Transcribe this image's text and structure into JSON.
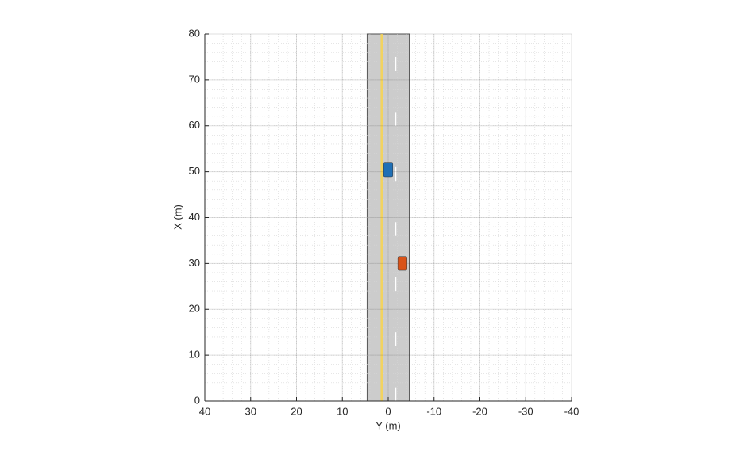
{
  "chart_data": {
    "type": "scenario",
    "xlabel": "Y (m)",
    "ylabel": "X (m)",
    "xlim": [
      40,
      -40
    ],
    "ylim": [
      0,
      80
    ],
    "xticks": [
      40,
      30,
      20,
      10,
      0,
      -10,
      -20,
      -30,
      -40
    ],
    "yticks": [
      0,
      10,
      20,
      30,
      40,
      50,
      60,
      70,
      80
    ],
    "grid": true,
    "minor_grid": true,
    "road": {
      "left_edge": 4.6,
      "right_edge": -4.6,
      "color": "#cccccc",
      "edge_color": "#555555"
    },
    "lane_markings": [
      {
        "y": 1.4,
        "color": "#f2d35f",
        "style": "solid"
      },
      {
        "y": -1.6,
        "color": "#ffffff",
        "style": "dashed",
        "dashes": [
          [
            0,
            3
          ],
          [
            12,
            15
          ],
          [
            24,
            27
          ],
          [
            36,
            39
          ],
          [
            48,
            51
          ],
          [
            60,
            63
          ],
          [
            72,
            75
          ]
        ]
      }
    ],
    "vehicles": [
      {
        "x": 50.4,
        "y": 0,
        "length": 3,
        "width": 2,
        "color": "#1f6fb5"
      },
      {
        "x": 30,
        "y": -3.1,
        "length": 3,
        "width": 2,
        "color": "#d95319"
      }
    ]
  }
}
